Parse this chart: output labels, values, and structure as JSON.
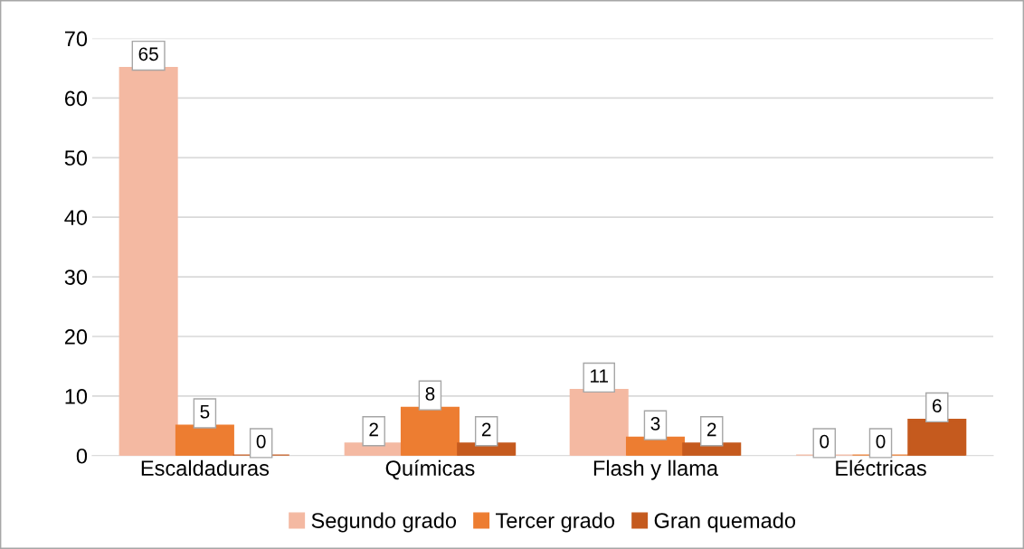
{
  "chart_data": {
    "type": "bar",
    "categories": [
      "Escaldaduras",
      "Químicas",
      "Flash y llama",
      "Eléctricas"
    ],
    "series": [
      {
        "name": "Segundo grado",
        "color": "#f4b9a2",
        "values": [
          65,
          2,
          11,
          0
        ]
      },
      {
        "name": "Tercer grado",
        "color": "#ed7d31",
        "values": [
          5,
          8,
          3,
          0
        ]
      },
      {
        "name": "Gran quemado",
        "color": "#c55a1e",
        "values": [
          0,
          2,
          2,
          6
        ]
      }
    ],
    "ylim": [
      0,
      70
    ],
    "yticks": [
      0,
      10,
      20,
      30,
      40,
      50,
      60,
      70
    ],
    "grid": "y",
    "legend": "bottom",
    "data_labels": true
  }
}
